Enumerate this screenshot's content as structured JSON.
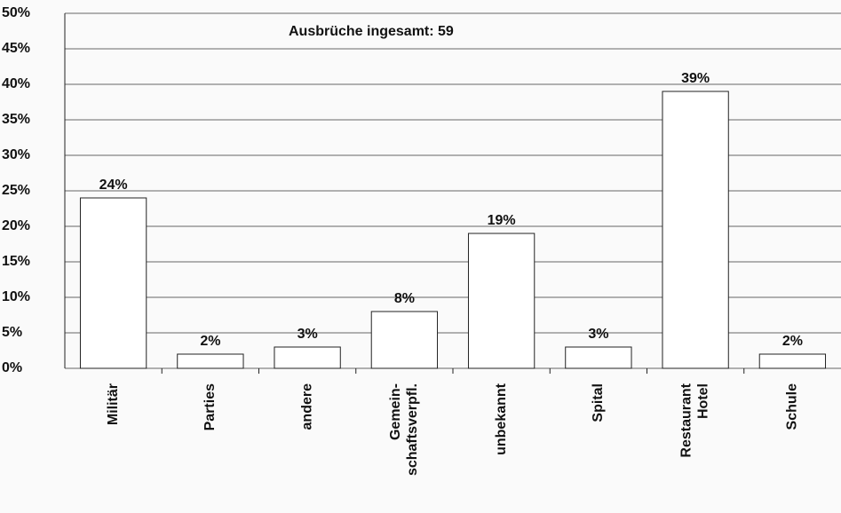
{
  "chart_data": {
    "type": "bar",
    "annotation": "Ausbrüche ingesamt: 59",
    "categories": [
      "Militär",
      "Parties",
      "andere",
      "Gemein-\nschaftsverpfl.",
      "unbekannt",
      "Spital",
      "Restaurant\nHotel",
      "Schule"
    ],
    "values": [
      24,
      2,
      3,
      8,
      19,
      3,
      39,
      2
    ],
    "value_labels": [
      "24%",
      "2%",
      "3%",
      "8%",
      "19%",
      "3%",
      "39%",
      "2%"
    ],
    "color": "#ffffff",
    "ylim": [
      0,
      50
    ],
    "yticks": [
      {
        "value": 0,
        "label": "0%"
      },
      {
        "value": 5,
        "label": "5%"
      },
      {
        "value": 10,
        "label": "10%"
      },
      {
        "value": 15,
        "label": "15%"
      },
      {
        "value": 20,
        "label": "20%"
      },
      {
        "value": 25,
        "label": "25%"
      },
      {
        "value": 30,
        "label": "30%"
      },
      {
        "value": 35,
        "label": "35%"
      },
      {
        "value": 40,
        "label": "40%"
      },
      {
        "value": 45,
        "label": "45%"
      },
      {
        "value": 50,
        "label": "50%"
      }
    ],
    "grid": true
  }
}
